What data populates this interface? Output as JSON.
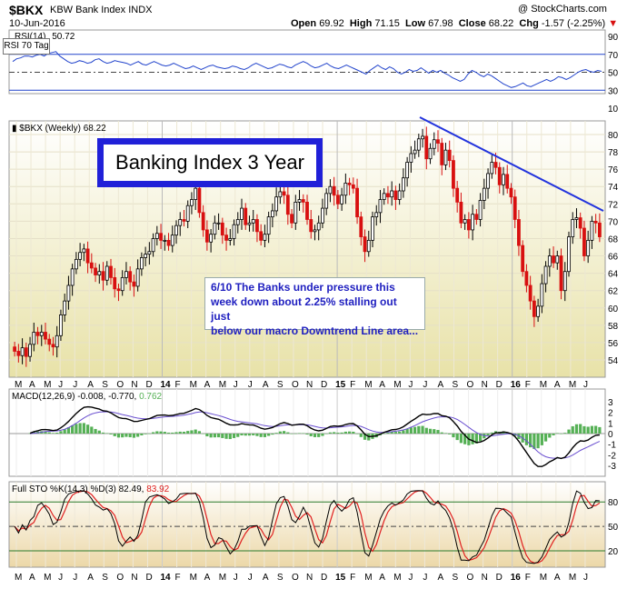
{
  "header": {
    "symbol": "$BKX",
    "name": "KBW Bank Index  INDX",
    "date": "10-Jun-2016",
    "source": "@ StockCharts.com",
    "open_label": "Open",
    "open": "69.92",
    "high_label": "High",
    "high": "71.15",
    "low_label": "Low",
    "low": "67.98",
    "close_label": "Close",
    "close": "68.22",
    "chg_label": "Chg",
    "chg": "-1.57 (-2.25%)"
  },
  "rsi": {
    "label": "RSI(14)",
    "value": "50.72",
    "tag": "RSI 70 Tag",
    "ticks": [
      90,
      70,
      50,
      30,
      10
    ],
    "series": [
      62,
      65,
      66,
      68,
      68,
      67,
      69,
      70,
      68,
      71,
      72,
      73,
      68,
      65,
      62,
      60,
      61,
      63,
      62,
      60,
      61,
      64,
      65,
      62,
      60,
      61,
      63,
      62,
      61,
      60,
      58,
      60,
      62,
      59,
      58,
      60,
      62,
      60,
      58,
      57,
      58,
      60,
      58,
      56,
      54,
      55,
      57,
      55,
      53,
      55,
      57,
      58,
      56,
      55,
      54,
      55,
      57,
      56,
      54,
      53,
      55,
      58,
      60,
      58,
      56,
      54,
      55,
      57,
      59,
      58,
      56,
      55,
      58,
      60,
      62,
      60,
      57,
      55,
      56,
      58,
      60,
      57,
      55,
      54,
      56,
      58,
      56,
      54,
      52,
      50,
      48,
      52,
      55,
      58,
      55,
      53,
      56,
      54,
      50,
      48,
      50,
      53,
      51,
      52,
      55,
      52,
      49,
      52,
      50,
      52,
      49,
      47,
      44,
      42,
      40,
      42,
      48,
      52,
      50,
      47,
      45,
      48,
      46,
      43,
      40,
      37,
      35,
      33,
      34,
      36,
      38,
      35,
      34,
      36,
      38,
      40,
      42,
      40,
      42,
      45,
      44,
      42,
      44,
      47,
      50,
      52,
      53,
      51,
      50,
      52,
      51
    ]
  },
  "price": {
    "label": "$BKX (Weekly)",
    "value": "68.22",
    "ticks": [
      80,
      78,
      76,
      74,
      72,
      70,
      68,
      66,
      64,
      62,
      60,
      58,
      56,
      54
    ],
    "ylim": [
      52.7,
      81.5
    ],
    "title_box": "Banking Index 3 Year",
    "note_lines": [
      "6/10  The Banks under pressure this",
      "week down about 2.25% stalling out just",
      "below our macro Downtrend Line area..."
    ]
  },
  "macd": {
    "label": "MACD(12,26,9)",
    "values": "-0.008, -0.770,",
    "hist_value": "0.762",
    "ticks": [
      3,
      2,
      1,
      0,
      -1,
      -2,
      -3
    ]
  },
  "sto": {
    "label": "Full STO %K(14,3) %D(3)",
    "k_value": "82.49,",
    "d_value": "83.92",
    "ticks": [
      80,
      50,
      20
    ]
  },
  "x_axis": {
    "labels": [
      "M",
      "A",
      "M",
      "J",
      "J",
      "A",
      "S",
      "O",
      "N",
      "D",
      "14",
      "F",
      "M",
      "A",
      "M",
      "J",
      "J",
      "A",
      "S",
      "O",
      "N",
      "D",
      "15",
      "F",
      "M",
      "A",
      "M",
      "J",
      "J",
      "A",
      "S",
      "O",
      "N",
      "D",
      "16",
      "F",
      "M",
      "A",
      "M",
      "J"
    ]
  },
  "chart_data": [
    {
      "type": "candlestick",
      "title": "$BKX (Weekly)",
      "ylim": [
        52.7,
        81.5
      ],
      "series": [
        {
          "name": "$BKX (Weekly)",
          "close": [
            55.0,
            54.5,
            55.4,
            54.4,
            55.8,
            57.2,
            56.8,
            57.2,
            56.4,
            55.8,
            55.5,
            56.8,
            59.2,
            60.8,
            62.6,
            64.5,
            65.6,
            66.4,
            66.8,
            65.2,
            64.6,
            63.8,
            64.2,
            63.2,
            64.8,
            63.5,
            62.2,
            62.0,
            63.5,
            64.2,
            63.0,
            62.5,
            64.5,
            65.8,
            66.2,
            66.5,
            68.0,
            68.6,
            67.8,
            67.8,
            67.2,
            68.4,
            69.5,
            70.2,
            70.0,
            71.8,
            72.5,
            73.8,
            71.0,
            69.0,
            67.6,
            68.5,
            69.8,
            69.8,
            68.4,
            67.8,
            68.0,
            69.6,
            70.2,
            71.5,
            69.6,
            69.8,
            70.2,
            68.8,
            67.8,
            68.5,
            70.5,
            71.2,
            72.8,
            73.4,
            73.0,
            70.8,
            69.8,
            72.2,
            72.5,
            72.2,
            70.2,
            68.8,
            69.0,
            69.8,
            71.5,
            73.2,
            74.0,
            73.0,
            72.0,
            73.0,
            74.4,
            74.2,
            73.8,
            70.5,
            68.2,
            66.5,
            67.8,
            70.5,
            71.0,
            72.5,
            73.2,
            72.8,
            73.5,
            72.5,
            73.5,
            75.0,
            76.8,
            77.8,
            78.2,
            79.5,
            79.8,
            77.2,
            78.4,
            79.4,
            79.0,
            76.5,
            78.2,
            77.0,
            73.8,
            72.2,
            69.8,
            70.2,
            69.0,
            70.8,
            70.2,
            72.4,
            73.8,
            75.5,
            76.8,
            76.2,
            74.2,
            75.4,
            73.8,
            72.8,
            70.2,
            67.2,
            64.2,
            62.6,
            60.8,
            59.0,
            60.2,
            62.8,
            64.8,
            66.0,
            65.2,
            66.0,
            62.0,
            64.2,
            68.2,
            70.2,
            70.4,
            69.2,
            66.0,
            67.8,
            70.0,
            69.8,
            68.2
          ]
        }
      ]
    },
    {
      "type": "line",
      "title": "RSI(14)",
      "ylim": [
        0,
        100
      ],
      "series": [
        {
          "name": "RSI(14)",
          "values": "same as rsi.series"
        }
      ]
    },
    {
      "type": "line",
      "title": "MACD(12,26,9)",
      "ylim": [
        -3.5,
        3.5
      ],
      "series": [
        {
          "name": "MACD"
        },
        {
          "name": "Signal"
        },
        {
          "name": "Histogram"
        }
      ]
    },
    {
      "type": "line",
      "title": "Full STO %K(14,3) %D(3)",
      "ylim": [
        0,
        100
      ],
      "series": [
        {
          "name": "%K"
        },
        {
          "name": "%D"
        }
      ]
    }
  ],
  "colors": {
    "up": "#000000",
    "down": "#d81010",
    "trend": "#2233dd",
    "rsi": "#2244cc",
    "macd_signal": "#6a4fd0",
    "hist": "#55b055",
    "sto_d": "#e02020"
  }
}
